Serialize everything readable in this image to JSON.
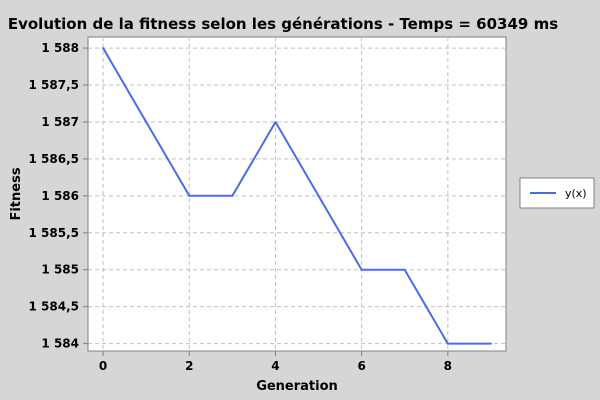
{
  "chart_data": {
    "type": "line",
    "title": "Evolution de la fitness selon les générations - Temps = 60349 ms",
    "xlabel": "Generation",
    "ylabel": "Fitness",
    "xlim": [
      -0.35,
      9.35
    ],
    "ylim": [
      1583.9,
      1588.15
    ],
    "x_ticks": [
      0,
      2,
      4,
      6,
      8
    ],
    "x_tick_labels": [
      "0",
      "2",
      "4",
      "6",
      "8"
    ],
    "y_ticks": [
      1584,
      1584.5,
      1585,
      1585.5,
      1586,
      1586.5,
      1587,
      1587.5,
      1588
    ],
    "y_tick_labels": [
      "1 584",
      "1 584,5",
      "1 585",
      "1 585,5",
      "1 586",
      "1 586,5",
      "1 587",
      "1 587,5",
      "1 588"
    ],
    "grid": true,
    "legend_position": "right",
    "series": [
      {
        "name": "y(x)",
        "color": "#4a6de5",
        "x": [
          0,
          1,
          2,
          3,
          4,
          5,
          6,
          7,
          8,
          9
        ],
        "y": [
          1588,
          1587,
          1586,
          1586,
          1587,
          1586,
          1585,
          1585,
          1584,
          1584
        ]
      }
    ],
    "colors": {
      "background": "#d6d6d6",
      "plot_background": "#ffffff",
      "grid": "#c0c0c0"
    }
  }
}
